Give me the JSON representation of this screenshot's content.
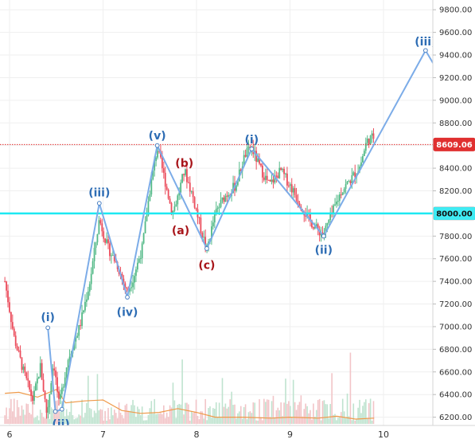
{
  "chart_data": {
    "type": "candlestick",
    "y_axis": {
      "range": [
        6140,
        9890
      ],
      "ticks": [
        "6200.00",
        "6400.00",
        "6600.00",
        "6800.00",
        "7000.00",
        "7200.00",
        "7400.00",
        "7600.00",
        "7800.00",
        "8000.00",
        "8200.00",
        "8400.00",
        "8600.00",
        "8800.00",
        "9000.00",
        "9200.00",
        "9400.00",
        "9600.00",
        "9800.00"
      ],
      "tick_values": [
        6200,
        6400,
        6600,
        6800,
        7000,
        7200,
        7400,
        7600,
        7800,
        8000,
        8200,
        8400,
        8600,
        8800,
        9000,
        9200,
        9400,
        9600,
        9800
      ]
    },
    "x_axis": {
      "range": [
        5.95,
        10.55
      ],
      "ticks": [
        "6",
        "7",
        "8",
        "9",
        "10"
      ],
      "tick_values": [
        6,
        7,
        8,
        9,
        10
      ]
    },
    "levels": [
      {
        "value": 8000,
        "label": "8000.00",
        "color": "#1de9f2",
        "style": "solid"
      },
      {
        "value": 8609.06,
        "label": "8609.06",
        "color": "#e03030",
        "style": "dotted"
      }
    ],
    "wave_path": [
      {
        "x": 6.41,
        "y": 6990
      },
      {
        "x": 6.49,
        "y": 6250
      },
      {
        "x": 6.56,
        "y": 6270
      },
      {
        "x": 6.96,
        "y": 8090
      },
      {
        "x": 7.26,
        "y": 7260
      },
      {
        "x": 7.58,
        "y": 8600
      },
      {
        "x": 8.11,
        "y": 7690
      },
      {
        "x": 8.59,
        "y": 8570
      },
      {
        "x": 9.36,
        "y": 7800
      },
      {
        "x": 10.45,
        "y": 9440
      },
      {
        "x": 10.55,
        "y": 9300
      }
    ],
    "labels": [
      {
        "text": "(i)",
        "x": 6.41,
        "y": 7085,
        "color": "blue"
      },
      {
        "text": "(ii)",
        "x": 6.55,
        "y": 6140,
        "color": "blue"
      },
      {
        "text": "(iii)",
        "x": 6.96,
        "y": 8185,
        "color": "blue"
      },
      {
        "text": "(iv)",
        "x": 7.26,
        "y": 7130,
        "color": "blue"
      },
      {
        "text": "(v)",
        "x": 7.58,
        "y": 8690,
        "color": "blue"
      },
      {
        "text": "(a)",
        "x": 7.83,
        "y": 7850,
        "color": "red"
      },
      {
        "text": "(b)",
        "x": 7.87,
        "y": 8445,
        "color": "red"
      },
      {
        "text": "(c)",
        "x": 8.11,
        "y": 7545,
        "color": "red"
      },
      {
        "text": "(i)",
        "x": 8.59,
        "y": 8655,
        "color": "blue"
      },
      {
        "text": "(ii)",
        "x": 9.36,
        "y": 7680,
        "color": "blue"
      },
      {
        "text": "(iii)",
        "x": 10.45,
        "y": 9520,
        "color": "blue"
      }
    ],
    "candles_path": [
      {
        "x": 5.95,
        "p": 7400
      },
      {
        "x": 6.05,
        "p": 6900
      },
      {
        "x": 6.15,
        "p": 6600
      },
      {
        "x": 6.25,
        "p": 6350
      },
      {
        "x": 6.33,
        "p": 6650
      },
      {
        "x": 6.4,
        "p": 6220
      },
      {
        "x": 6.47,
        "p": 6700
      },
      {
        "x": 6.53,
        "p": 6300
      },
      {
        "x": 6.62,
        "p": 6700
      },
      {
        "x": 6.75,
        "p": 7000
      },
      {
        "x": 6.86,
        "p": 7400
      },
      {
        "x": 6.96,
        "p": 7950
      },
      {
        "x": 7.05,
        "p": 7700
      },
      {
        "x": 7.15,
        "p": 7550
      },
      {
        "x": 7.26,
        "p": 7300
      },
      {
        "x": 7.33,
        "p": 7450
      },
      {
        "x": 7.42,
        "p": 7700
      },
      {
        "x": 7.5,
        "p": 8200
      },
      {
        "x": 7.58,
        "p": 8580
      },
      {
        "x": 7.66,
        "p": 8300
      },
      {
        "x": 7.74,
        "p": 8000
      },
      {
        "x": 7.8,
        "p": 8150
      },
      {
        "x": 7.87,
        "p": 8380
      },
      {
        "x": 7.96,
        "p": 8150
      },
      {
        "x": 8.05,
        "p": 7850
      },
      {
        "x": 8.11,
        "p": 7680
      },
      {
        "x": 8.2,
        "p": 8000
      },
      {
        "x": 8.3,
        "p": 8150
      },
      {
        "x": 8.42,
        "p": 8250
      },
      {
        "x": 8.52,
        "p": 8520
      },
      {
        "x": 8.59,
        "p": 8580
      },
      {
        "x": 8.68,
        "p": 8400
      },
      {
        "x": 8.78,
        "p": 8250
      },
      {
        "x": 8.9,
        "p": 8380
      },
      {
        "x": 9.0,
        "p": 8250
      },
      {
        "x": 9.1,
        "p": 8100
      },
      {
        "x": 9.2,
        "p": 7950
      },
      {
        "x": 9.3,
        "p": 7850
      },
      {
        "x": 9.36,
        "p": 7820
      },
      {
        "x": 9.45,
        "p": 8000
      },
      {
        "x": 9.55,
        "p": 8200
      },
      {
        "x": 9.65,
        "p": 8300
      },
      {
        "x": 9.75,
        "p": 8420
      },
      {
        "x": 9.82,
        "p": 8640
      },
      {
        "x": 9.9,
        "p": 8680
      }
    ],
    "volume_ma": [
      {
        "x": 5.95,
        "v": 0.32
      },
      {
        "x": 6.1,
        "v": 0.33
      },
      {
        "x": 6.3,
        "v": 0.28
      },
      {
        "x": 6.5,
        "v": 0.36
      },
      {
        "x": 6.6,
        "v": 0.22
      },
      {
        "x": 6.8,
        "v": 0.24
      },
      {
        "x": 7.0,
        "v": 0.25
      },
      {
        "x": 7.2,
        "v": 0.14
      },
      {
        "x": 7.4,
        "v": 0.11
      },
      {
        "x": 7.6,
        "v": 0.12
      },
      {
        "x": 7.8,
        "v": 0.16
      },
      {
        "x": 8.0,
        "v": 0.12
      },
      {
        "x": 8.2,
        "v": 0.07
      },
      {
        "x": 8.5,
        "v": 0.07
      },
      {
        "x": 8.8,
        "v": 0.06
      },
      {
        "x": 9.0,
        "v": 0.07
      },
      {
        "x": 9.3,
        "v": 0.06
      },
      {
        "x": 9.5,
        "v": 0.08
      },
      {
        "x": 9.7,
        "v": 0.05
      },
      {
        "x": 9.9,
        "v": 0.06
      }
    ],
    "colors": {
      "up": "#53b987",
      "down": "#eb4d5c",
      "wave": "#7cace8",
      "wave_point_fill": "#ffffff",
      "level_8000": "#1de9f2",
      "level_last": "#e03030",
      "volume_ma": "#ef9a4a",
      "volume_up": "#bfe3cf",
      "volume_down": "#f2c4c7",
      "grid": "#efefef",
      "axis": "#d6d6d6"
    }
  }
}
